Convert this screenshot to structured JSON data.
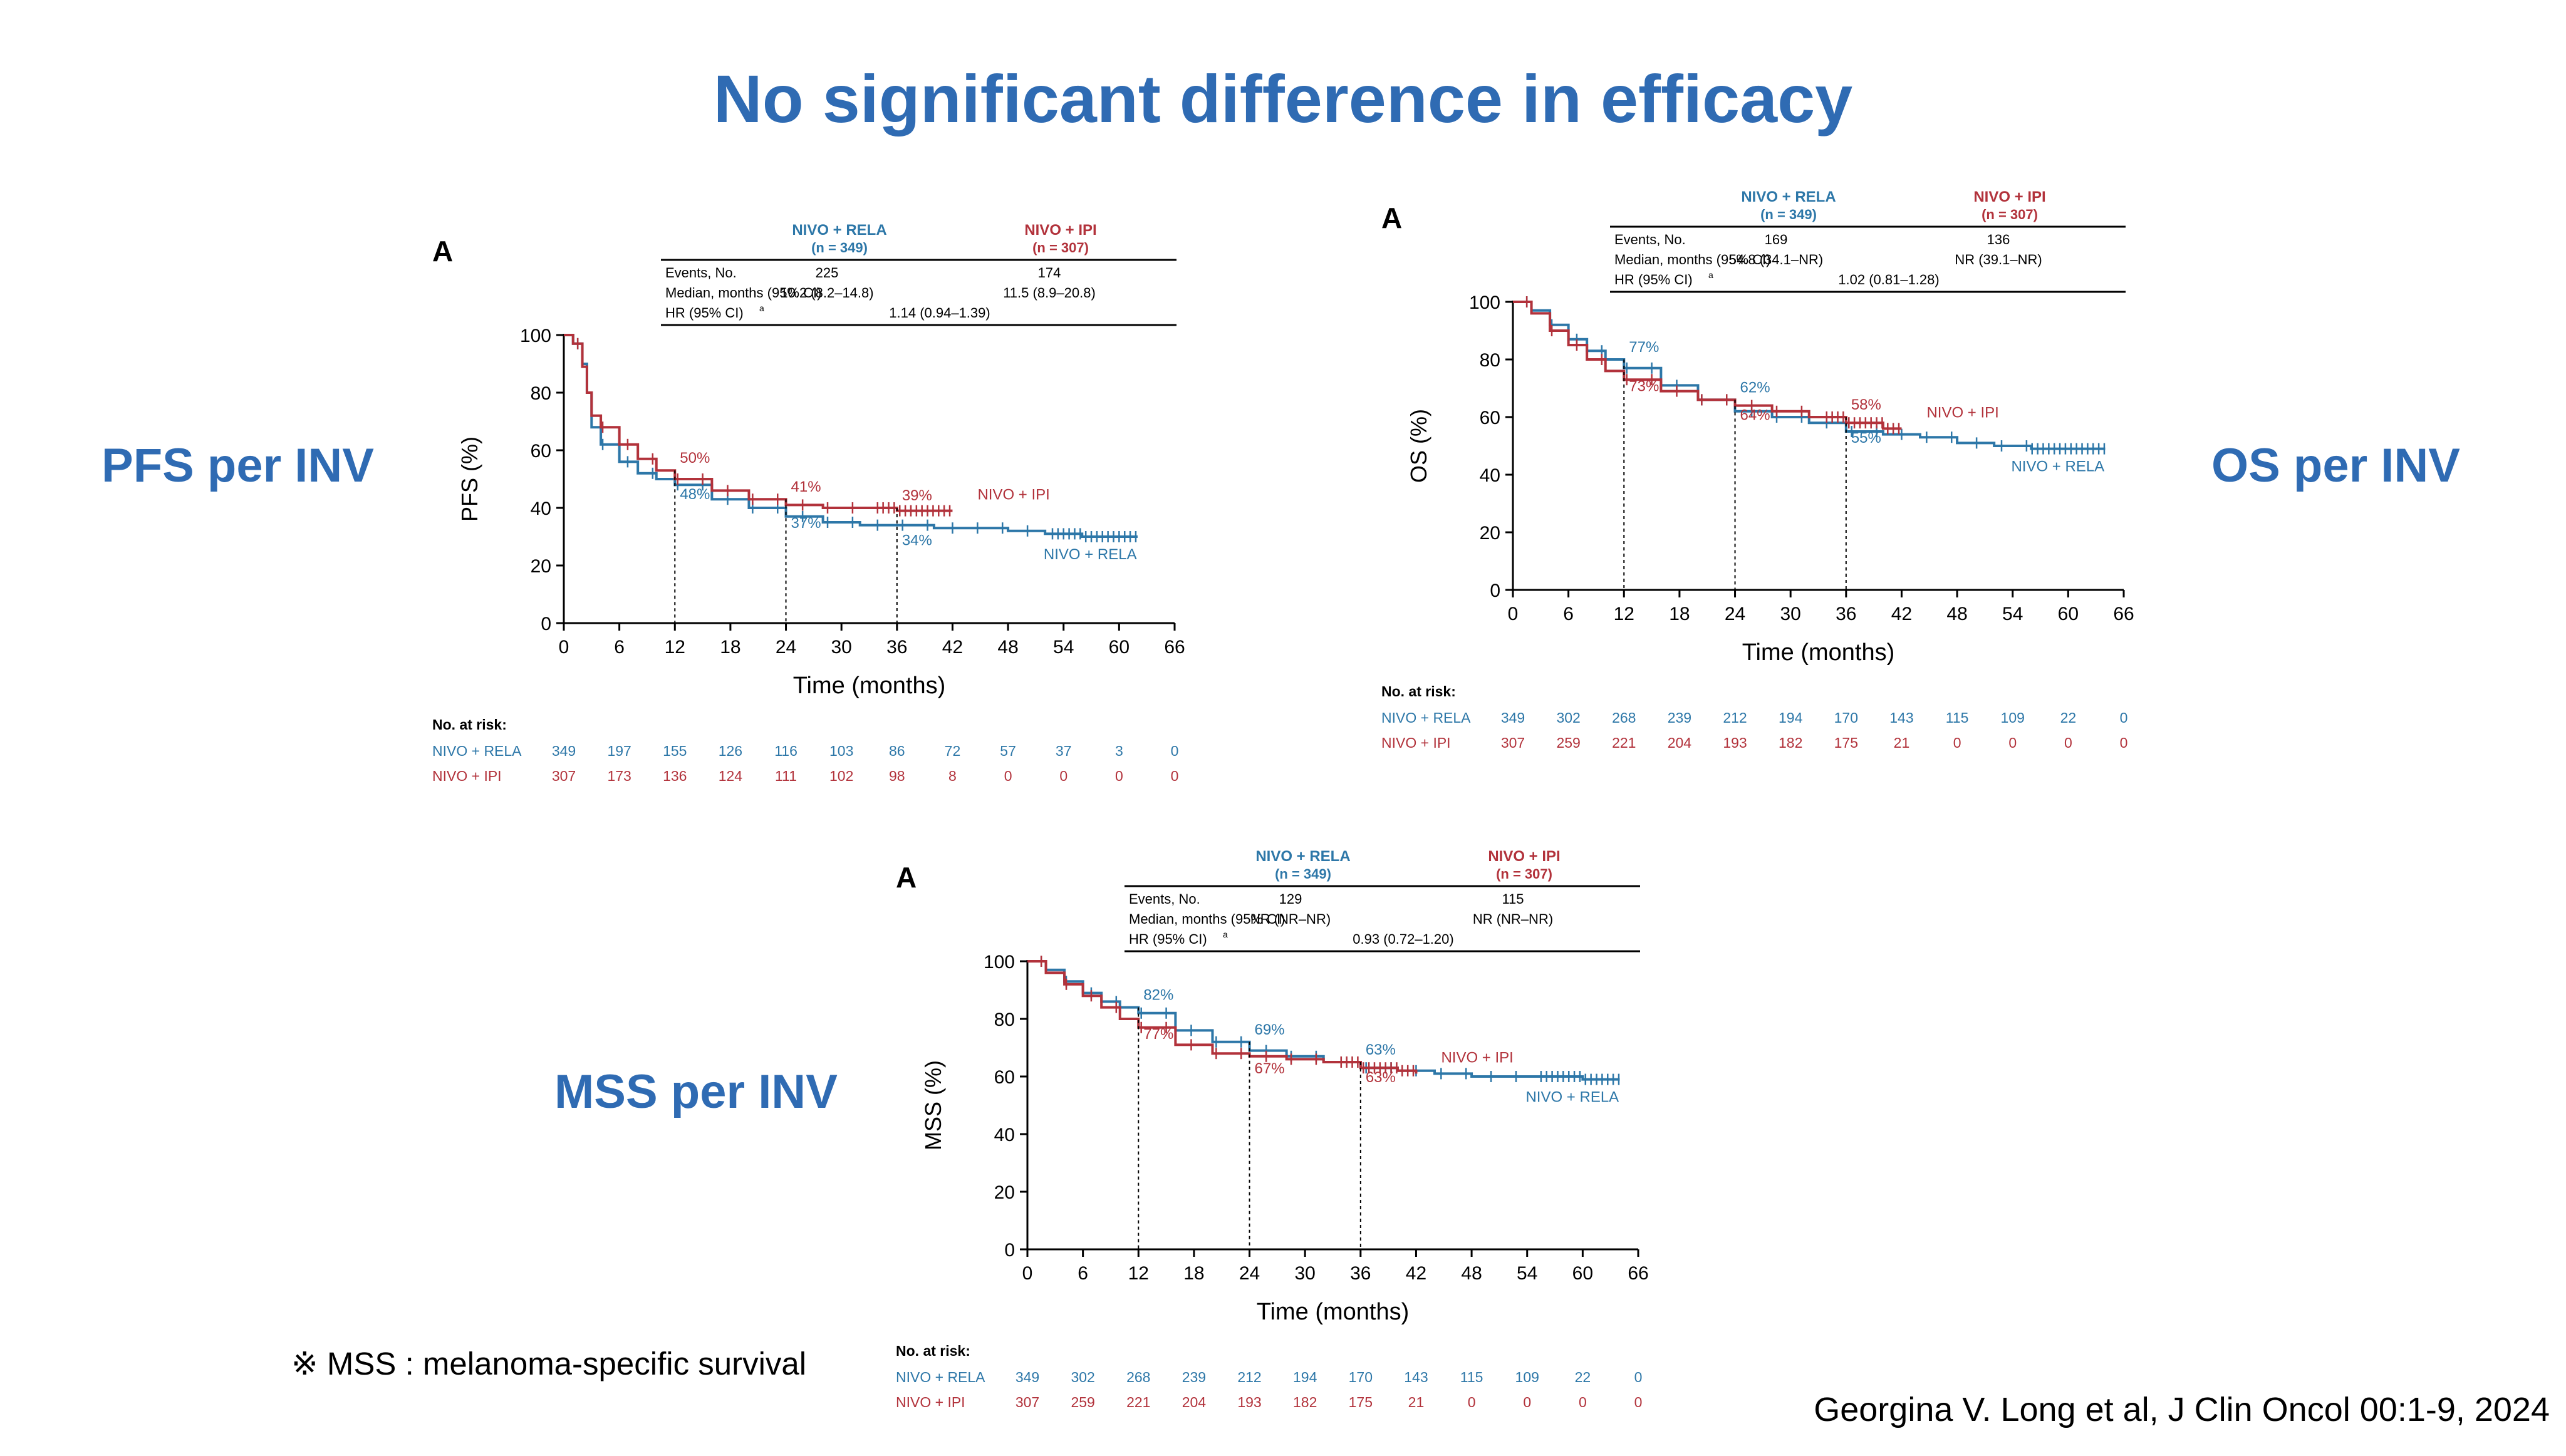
{
  "slide": {
    "title": "No significant difference in efficacy",
    "labels": {
      "pfs": "PFS per INV",
      "os": "OS per INV",
      "mss": "MSS per INV"
    },
    "footnote": "※ MSS : melanoma-specific survival",
    "citation": "Georgina V. Long et al, J Clin Oncol 00:1-9, 2024",
    "colors": {
      "title": "#2f6bb3",
      "rela": "#2d77a8",
      "ipi": "#b2323b"
    }
  },
  "chart_data": [
    {
      "id": "pfs",
      "type": "line",
      "panel_letter": "A",
      "xlabel": "Time (months)",
      "ylabel": "PFS (%)",
      "xlim": [
        0,
        66
      ],
      "ylim": [
        0,
        100
      ],
      "xticks": [
        0,
        6,
        12,
        18,
        24,
        30,
        36,
        42,
        48,
        54,
        60,
        66
      ],
      "yticks": [
        0,
        20,
        40,
        60,
        80,
        100
      ],
      "table": {
        "col1": "NIVO + RELA",
        "col1_n": "(n = 349)",
        "col2": "NIVO + IPI",
        "col2_n": "(n = 307)",
        "rows": [
          {
            "label": "Events, No.",
            "v1": "225",
            "v2": "174"
          },
          {
            "label": "Median, months (95% CI)",
            "v1": "10.2 (8.2–14.8)",
            "v2": "11.5 (8.9–20.8)"
          }
        ],
        "hr_label": "HR (95% CI)",
        "hr_sup": "a",
        "hr_value": "1.14 (0.94–1.39)"
      },
      "series": [
        {
          "name": "NIVO + RELA",
          "end_label": "NIVO + RELA",
          "x": [
            0,
            1,
            2,
            2.5,
            3,
            4,
            6,
            8,
            10,
            12,
            16,
            20,
            24,
            28,
            32,
            36,
            40,
            44,
            48,
            52,
            56,
            60,
            62
          ],
          "y": [
            100,
            97,
            90,
            80,
            68,
            62,
            56,
            52,
            50,
            48,
            43,
            40,
            37,
            35,
            34,
            34,
            33,
            33,
            32,
            31,
            30,
            30,
            30
          ]
        },
        {
          "name": "NIVO + IPI",
          "end_label": "NIVO + IPI",
          "x": [
            0,
            1,
            2,
            2.5,
            3,
            4,
            6,
            8,
            10,
            12,
            16,
            20,
            24,
            28,
            32,
            36,
            40,
            42
          ],
          "y": [
            100,
            97,
            89,
            80,
            72,
            68,
            62,
            57,
            53,
            50,
            46,
            43,
            41,
            40,
            40,
            39,
            39,
            39
          ]
        }
      ],
      "landmarks": [
        {
          "x": 12,
          "rela": "48%",
          "ipi": "50%"
        },
        {
          "x": 24,
          "rela": "37%",
          "ipi": "41%"
        },
        {
          "x": 36,
          "rela": "34%",
          "ipi": "39%"
        }
      ],
      "risk": {
        "title": "No. at risk:",
        "rela_label": "NIVO + RELA",
        "rela": [
          349,
          197,
          155,
          126,
          116,
          103,
          86,
          72,
          57,
          37,
          3,
          0
        ],
        "ipi_label": "NIVO + IPI",
        "ipi": [
          307,
          173,
          136,
          124,
          111,
          102,
          98,
          8,
          0,
          0,
          0,
          0
        ]
      }
    },
    {
      "id": "os",
      "type": "line",
      "panel_letter": "A",
      "xlabel": "Time (months)",
      "ylabel": "OS (%)",
      "xlim": [
        0,
        66
      ],
      "ylim": [
        0,
        100
      ],
      "xticks": [
        0,
        6,
        12,
        18,
        24,
        30,
        36,
        42,
        48,
        54,
        60,
        66
      ],
      "yticks": [
        0,
        20,
        40,
        60,
        80,
        100
      ],
      "table": {
        "col1": "NIVO + RELA",
        "col1_n": "(n = 349)",
        "col2": "NIVO + IPI",
        "col2_n": "(n = 307)",
        "rows": [
          {
            "label": "Events, No.",
            "v1": "169",
            "v2": "136"
          },
          {
            "label": "Median, months (95% CI)",
            "v1": "54.8 (34.1–NR)",
            "v2": "NR (39.1–NR)"
          }
        ],
        "hr_label": "HR (95% CI)",
        "hr_sup": "a",
        "hr_value": "1.02 (0.81–1.28)"
      },
      "series": [
        {
          "name": "NIVO + RELA",
          "end_label": "NIVO + RELA",
          "x": [
            0,
            2,
            4,
            6,
            8,
            10,
            12,
            16,
            20,
            24,
            28,
            32,
            36,
            40,
            44,
            48,
            52,
            56,
            60,
            64
          ],
          "y": [
            100,
            97,
            92,
            87,
            83,
            80,
            77,
            71,
            66,
            62,
            60,
            58,
            55,
            54,
            53,
            51,
            50,
            49,
            49,
            49
          ]
        },
        {
          "name": "NIVO + IPI",
          "end_label": "NIVO + IPI",
          "x": [
            0,
            2,
            4,
            6,
            8,
            10,
            12,
            16,
            20,
            24,
            28,
            32,
            36,
            40,
            42
          ],
          "y": [
            100,
            96,
            90,
            85,
            80,
            76,
            73,
            69,
            66,
            64,
            62,
            60,
            58,
            56,
            56
          ]
        }
      ],
      "landmarks": [
        {
          "x": 12,
          "rela": "77%",
          "ipi": "73%"
        },
        {
          "x": 24,
          "rela": "62%",
          "ipi": "64%"
        },
        {
          "x": 36,
          "rela": "55%",
          "ipi": "58%"
        }
      ],
      "risk": {
        "title": "No. at risk:",
        "rela_label": "NIVO + RELA",
        "rela": [
          349,
          302,
          268,
          239,
          212,
          194,
          170,
          143,
          115,
          109,
          22,
          0
        ],
        "ipi_label": "NIVO + IPI",
        "ipi": [
          307,
          259,
          221,
          204,
          193,
          182,
          175,
          21,
          0,
          0,
          0,
          0
        ]
      }
    },
    {
      "id": "mss",
      "type": "line",
      "panel_letter": "A",
      "xlabel": "Time (months)",
      "ylabel": "MSS (%)",
      "xlim": [
        0,
        66
      ],
      "ylim": [
        0,
        100
      ],
      "xticks": [
        0,
        6,
        12,
        18,
        24,
        30,
        36,
        42,
        48,
        54,
        60,
        66
      ],
      "yticks": [
        0,
        20,
        40,
        60,
        80,
        100
      ],
      "table": {
        "col1": "NIVO + RELA",
        "col1_n": "(n = 349)",
        "col2": "NIVO + IPI",
        "col2_n": "(n = 307)",
        "rows": [
          {
            "label": "Events, No.",
            "v1": "129",
            "v2": "115"
          },
          {
            "label": "Median, months (95% CI)",
            "v1": "NR (NR–NR)",
            "v2": "NR (NR–NR)"
          }
        ],
        "hr_label": "HR (95% CI)",
        "hr_sup": "a",
        "hr_value": "0.93 (0.72–1.20)"
      },
      "series": [
        {
          "name": "NIVO + RELA",
          "end_label": "NIVO + RELA",
          "x": [
            0,
            2,
            4,
            6,
            8,
            10,
            12,
            16,
            20,
            24,
            28,
            32,
            36,
            40,
            44,
            48,
            52,
            56,
            60,
            64
          ],
          "y": [
            100,
            97,
            93,
            89,
            86,
            84,
            82,
            76,
            72,
            69,
            67,
            65,
            63,
            62,
            61,
            60,
            60,
            60,
            59,
            59
          ]
        },
        {
          "name": "NIVO + IPI",
          "end_label": "NIVO + IPI",
          "x": [
            0,
            2,
            4,
            6,
            8,
            10,
            12,
            16,
            20,
            24,
            28,
            32,
            36,
            40,
            42
          ],
          "y": [
            100,
            96,
            92,
            88,
            84,
            80,
            77,
            71,
            68,
            67,
            66,
            65,
            63,
            62,
            61
          ]
        }
      ],
      "landmarks": [
        {
          "x": 12,
          "rela": "82%",
          "ipi": "77%"
        },
        {
          "x": 24,
          "rela": "69%",
          "ipi": "67%"
        },
        {
          "x": 36,
          "rela": "63%",
          "ipi": "63%"
        }
      ],
      "risk": {
        "title": "No. at risk:",
        "rela_label": "NIVO + RELA",
        "rela": [
          349,
          302,
          268,
          239,
          212,
          194,
          170,
          143,
          115,
          109,
          22,
          0
        ],
        "ipi_label": "NIVO + IPI",
        "ipi": [
          307,
          259,
          221,
          204,
          193,
          182,
          175,
          21,
          0,
          0,
          0,
          0
        ]
      }
    }
  ]
}
